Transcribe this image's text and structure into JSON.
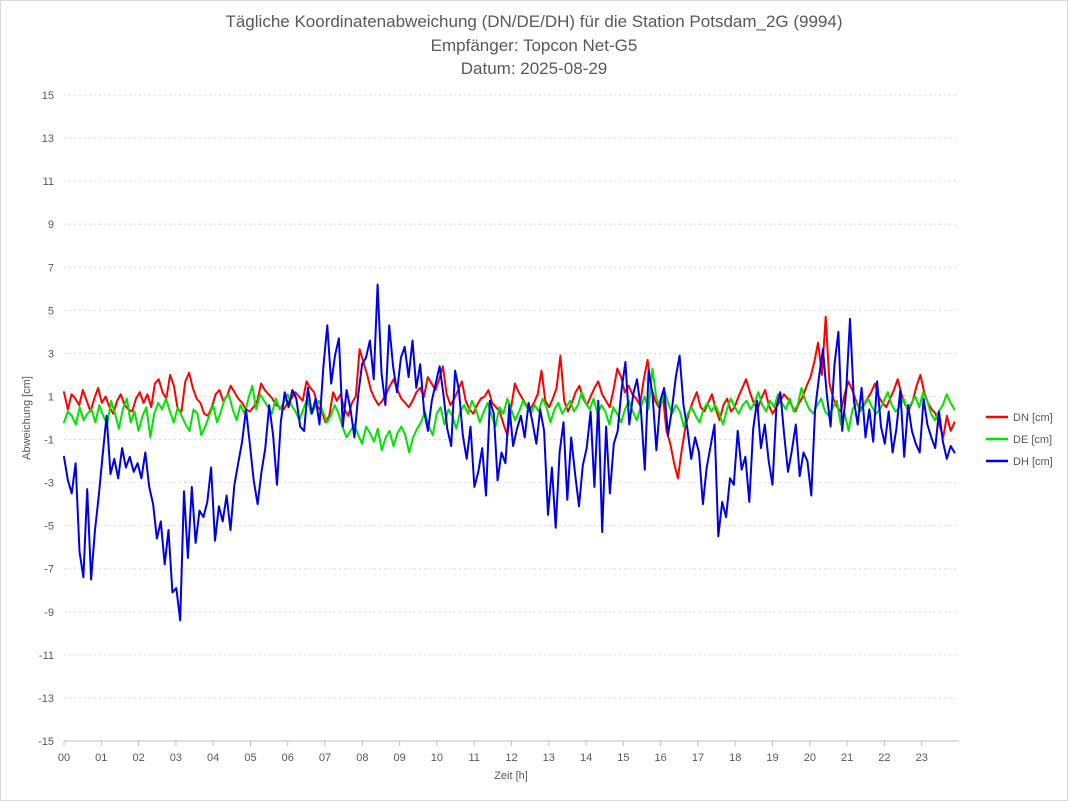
{
  "chart_data": {
    "type": "line",
    "title_lines": [
      "Tägliche Koordinatenabweichung (DN/DE/DH) für die Station Potsdam_2G (9994)",
      "Empfänger: Topcon Net-G5",
      "Datum: 2025-08-29"
    ],
    "xlabel": "Zeit [h]",
    "ylabel": "Abweichung [cm]",
    "xlim": [
      0,
      24
    ],
    "ylim": [
      -15,
      15
    ],
    "x_ticks": [
      "00",
      "01",
      "02",
      "03",
      "04",
      "05",
      "06",
      "07",
      "08",
      "09",
      "10",
      "11",
      "12",
      "13",
      "14",
      "15",
      "16",
      "17",
      "18",
      "19",
      "20",
      "21",
      "22",
      "23"
    ],
    "y_ticks": [
      15,
      13,
      11,
      9,
      7,
      5,
      3,
      1,
      -1,
      -3,
      -5,
      -7,
      -9,
      -11,
      -13,
      -15
    ],
    "grid": true,
    "legend_position": "right",
    "sample_interval_h": 0.0833,
    "series": [
      {
        "name": "DN [cm]",
        "color": "#ff0000",
        "values": [
          1.2,
          0.4,
          1.1,
          0.9,
          0.6,
          1.3,
          0.8,
          0.3,
          0.9,
          1.4,
          0.7,
          1.0,
          0.5,
          0.2,
          0.8,
          1.1,
          0.6,
          0.4,
          0.3,
          0.9,
          1.2,
          0.7,
          1.1,
          0.5,
          1.6,
          1.8,
          1.2,
          0.9,
          2.0,
          1.5,
          0.4,
          0.3,
          1.7,
          2.1,
          1.4,
          0.9,
          0.7,
          0.2,
          0.1,
          0.5,
          1.1,
          1.3,
          0.8,
          1.0,
          1.5,
          1.2,
          0.9,
          0.7,
          0.4,
          0.3,
          0.5,
          0.8,
          1.6,
          1.3,
          1.1,
          0.9,
          0.6,
          0.5,
          0.4,
          0.7,
          0.9,
          1.2,
          1.0,
          0.8,
          1.7,
          1.4,
          1.2,
          0.5,
          0.3,
          -0.2,
          0.1,
          1.2,
          0.8,
          1.1,
          0.4,
          0.1,
          0.7,
          1.0,
          3.2,
          2.6,
          2.0,
          1.3,
          0.9,
          0.6,
          0.8,
          1.1,
          1.5,
          1.8,
          1.3,
          0.9,
          0.7,
          0.5,
          0.8,
          1.2,
          1.4,
          1.0,
          1.9,
          1.6,
          1.3,
          1.8,
          2.4,
          1.1,
          0.6,
          0.9,
          1.3,
          1.7,
          0.8,
          0.4,
          0.2,
          0.6,
          0.9,
          1.0,
          1.3,
          0.7,
          0.5,
          0.3,
          -0.3,
          -0.8,
          0.5,
          1.6,
          1.2,
          0.9,
          0.6,
          0.4,
          0.7,
          1.1,
          2.2,
          0.8,
          0.5,
          0.9,
          1.4,
          2.9,
          0.8,
          0.3,
          0.7,
          1.2,
          1.5,
          0.9,
          0.6,
          1.0,
          1.4,
          1.7,
          1.1,
          0.8,
          0.5,
          1.3,
          2.3,
          1.9,
          1.2,
          1.5,
          1.1,
          0.9,
          0.6,
          1.8,
          2.7,
          1.4,
          0.8,
          0.5,
          1.1,
          -0.6,
          -1.2,
          -2.1,
          -2.8,
          -1.5,
          -0.4,
          0.3,
          0.8,
          1.2,
          0.5,
          0.3,
          0.7,
          1.1,
          0.4,
          -0.1,
          0.6,
          0.9,
          0.3,
          0.5,
          1.0,
          1.4,
          1.8,
          1.2,
          0.7,
          0.4,
          0.9,
          1.3,
          0.6,
          0.2,
          0.5,
          0.8,
          1.1,
          0.9,
          0.6,
          0.3,
          0.7,
          1.0,
          1.5,
          1.9,
          2.6,
          3.5,
          2.0,
          4.7,
          1.6,
          0.9,
          0.5,
          0.3,
          1.1,
          1.7,
          1.3,
          0.8,
          0.4,
          0.6,
          0.9,
          1.2,
          1.6,
          1.0,
          0.7,
          0.5,
          0.9,
          1.3,
          1.8,
          1.1,
          0.6,
          0.4,
          0.8,
          1.5,
          2.0,
          1.2,
          0.7,
          0.4,
          0.2,
          -0.3,
          -0.9,
          0.1,
          -0.6,
          -0.2
        ]
      },
      {
        "name": "DE [cm]",
        "color": "#00e400",
        "values": [
          -0.2,
          0.3,
          0.1,
          -0.3,
          0.5,
          -0.1,
          0.2,
          0.4,
          -0.2,
          0.6,
          0.1,
          -0.3,
          0.8,
          0.2,
          -0.5,
          0.4,
          0.9,
          -0.2,
          0.3,
          -0.6,
          0.1,
          0.5,
          -0.9,
          0.2,
          0.7,
          0.4,
          0.9,
          0.3,
          -0.2,
          0.5,
          0.1,
          -0.3,
          -0.6,
          0.4,
          0.2,
          -0.8,
          -0.4,
          0.1,
          0.6,
          -0.2,
          0.3,
          0.9,
          1.1,
          0.4,
          -0.1,
          0.6,
          0.2,
          0.9,
          1.5,
          0.4,
          1.1,
          0.8,
          0.5,
          0.2,
          0.9,
          0.4,
          0.7,
          1.1,
          0.6,
          0.3,
          -0.1,
          0.4,
          0.9,
          0.2,
          0.5,
          0.8,
          0.3,
          -0.2,
          0.1,
          0.6,
          0.2,
          -0.4,
          -0.9,
          -0.6,
          -0.3,
          -0.8,
          -1.2,
          -0.4,
          -0.7,
          -1.1,
          -0.5,
          -1.5,
          -0.9,
          -0.6,
          -1.3,
          -0.7,
          -0.4,
          -0.8,
          -1.6,
          -0.9,
          -0.5,
          -0.2,
          0.3,
          -0.4,
          -0.8,
          0.2,
          0.5,
          -0.3,
          0.4,
          0.1,
          -0.5,
          0.3,
          0.6,
          0.2,
          0.8,
          0.4,
          -0.2,
          0.3,
          0.7,
          0.1,
          -0.4,
          0.5,
          0.2,
          0.9,
          0.4,
          -0.1,
          0.3,
          0.8,
          0.5,
          0.2,
          0.6,
          0.3,
          0.9,
          0.5,
          -0.2,
          0.4,
          0.7,
          0.2,
          0.5,
          0.8,
          0.3,
          0.6,
          1.2,
          0.7,
          0.4,
          0.9,
          0.2,
          0.6,
          0.3,
          -0.3,
          0.5,
          0.2,
          -0.2,
          0.4,
          0.8,
          0.3,
          -0.1,
          0.5,
          1.0,
          0.4,
          2.3,
          0.9,
          0.5,
          1.3,
          0.7,
          0.2,
          0.6,
          0.3,
          -0.4,
          0.2,
          0.5,
          0.1,
          -0.2,
          0.4,
          0.7,
          0.3,
          0.6,
          0.2,
          -0.3,
          0.4,
          0.9,
          0.5,
          0.2,
          0.6,
          0.8,
          0.4,
          0.7,
          1.2,
          0.6,
          0.3,
          0.8,
          0.5,
          1.1,
          0.7,
          0.4,
          0.9,
          0.3,
          0.6,
          1.4,
          0.8,
          0.4,
          0.2,
          0.6,
          0.9,
          0.3,
          0.1,
          0.5,
          0.8,
          -0.3,
          0.2,
          -0.6,
          0.4,
          0.7,
          0.3,
          0.6,
          0.9,
          0.5,
          0.2,
          0.4,
          0.8,
          1.2,
          0.6,
          0.3,
          0.5,
          0.9,
          0.4,
          0.7,
          1.0,
          0.5,
          1.2,
          0.8,
          0.2,
          -0.1,
          0.3,
          0.6,
          1.1,
          0.7,
          0.4
        ]
      },
      {
        "name": "DH [cm]",
        "color": "#0000e6",
        "values": [
          -1.8,
          -2.9,
          -3.5,
          -2.1,
          -6.2,
          -7.4,
          -3.3,
          -7.5,
          -5.2,
          -3.6,
          -1.7,
          0.1,
          -2.6,
          -1.9,
          -2.8,
          -1.4,
          -2.3,
          -1.8,
          -2.5,
          -2.1,
          -2.8,
          -1.6,
          -3.2,
          -4.0,
          -5.6,
          -4.8,
          -6.8,
          -5.2,
          -8.1,
          -7.9,
          -9.4,
          -3.4,
          -6.5,
          -3.2,
          -5.8,
          -4.3,
          -4.6,
          -3.9,
          -2.3,
          -5.7,
          -4.1,
          -4.8,
          -3.6,
          -5.2,
          -3.1,
          -2.1,
          -1.1,
          0.4,
          -1.2,
          -2.9,
          -4.0,
          -2.5,
          -1.4,
          0.6,
          -0.8,
          -3.1,
          -0.2,
          1.2,
          0.5,
          1.3,
          0.9,
          -0.4,
          -0.6,
          1.4,
          0.2,
          0.9,
          -0.3,
          2.4,
          4.3,
          1.6,
          2.9,
          3.7,
          -0.4,
          1.3,
          0.4,
          -0.9,
          1.1,
          2.5,
          2.8,
          3.6,
          1.8,
          6.2,
          2.1,
          0.6,
          4.3,
          2.4,
          1.2,
          2.8,
          3.3,
          1.9,
          3.6,
          1.4,
          2.5,
          0.3,
          -0.6,
          0.8,
          1.6,
          2.4,
          1.1,
          -0.5,
          -1.3,
          2.2,
          1.3,
          -0.8,
          -1.9,
          -0.4,
          -3.2,
          -2.5,
          -1.4,
          -3.6,
          0.8,
          0.2,
          -2.9,
          -1.6,
          -2.1,
          0.6,
          -1.3,
          -0.5,
          0.1,
          -0.9,
          0.7,
          -0.2,
          -1.2,
          0.4,
          -0.6,
          -4.5,
          -2.3,
          -5.1,
          -1.6,
          -0.2,
          -3.8,
          -0.9,
          -2.6,
          -4.1,
          -2.2,
          -1.4,
          0.3,
          -3.2,
          0.8,
          -5.3,
          -0.4,
          -3.5,
          -1.2,
          -0.6,
          1.3,
          2.6,
          -0.3,
          1.1,
          1.8,
          0.4,
          -2.4,
          2.2,
          1.1,
          -1.5,
          0.8,
          1.4,
          -0.8,
          0.4,
          1.9,
          2.9,
          0.6,
          -0.5,
          -1.9,
          -0.9,
          -1.6,
          -4.0,
          -2.3,
          -1.3,
          -0.3,
          -5.5,
          -3.9,
          -4.6,
          -2.8,
          -3.1,
          -0.6,
          -2.4,
          -1.8,
          -3.9,
          -0.5,
          0.8,
          -1.4,
          -0.3,
          -2.0,
          -3.1,
          0.5,
          1.2,
          -0.8,
          -2.5,
          -1.5,
          -0.3,
          -2.7,
          -1.6,
          -2.0,
          -3.6,
          0.4,
          1.9,
          3.2,
          1.1,
          -0.4,
          2.5,
          4.0,
          -0.6,
          1.2,
          4.6,
          0.8,
          -0.3,
          1.4,
          -0.9,
          0.4,
          -1.1,
          1.7,
          -0.4,
          -1.2,
          0.3,
          -1.6,
          -0.5,
          1.3,
          -1.8,
          0.6,
          -0.6,
          -1.2,
          -1.6,
          0.9,
          -0.3,
          -0.9,
          -1.4,
          0.3,
          -1.1,
          -1.9,
          -1.3,
          -1.6
        ]
      }
    ]
  }
}
